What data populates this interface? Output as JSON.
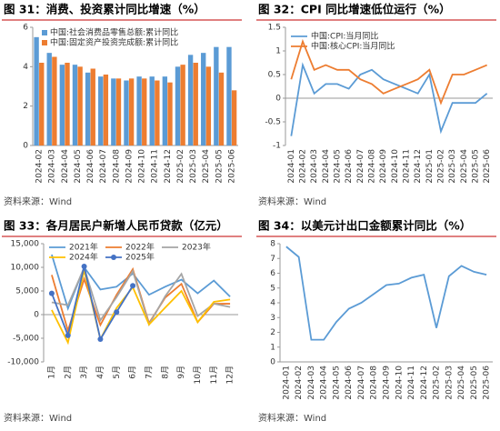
{
  "chart_data": [
    {
      "type": "bar",
      "title": "图 31：消费、投资累计同比增速（%）",
      "source": "资料来源：Wind",
      "categories": [
        "2024-02",
        "2024-03",
        "2024-04",
        "2024-05",
        "2024-06",
        "2024-07",
        "2024-08",
        "2024-09",
        "2024-10",
        "2024-11",
        "2024-12",
        "2025-02",
        "2025-03",
        "2025-04",
        "2025-05",
        "2025-06"
      ],
      "series": [
        {
          "name": "中国:社会消费品零售总额:累计同比",
          "color": "#5b9bd5",
          "values": [
            5.5,
            4.7,
            4.1,
            4.1,
            3.7,
            3.5,
            3.4,
            3.3,
            3.5,
            3.5,
            3.5,
            4.0,
            4.6,
            4.7,
            5.0,
            5.0
          ]
        },
        {
          "name": "中国:固定资产投资完成额:累计同比",
          "color": "#ed7d31",
          "values": [
            4.2,
            4.5,
            4.2,
            4.0,
            3.9,
            3.6,
            3.4,
            3.4,
            3.4,
            3.3,
            3.2,
            4.1,
            4.2,
            4.0,
            3.7,
            2.8
          ]
        }
      ],
      "ylim": [
        0,
        6
      ],
      "yticks": [
        0,
        2,
        4,
        6
      ],
      "grid": false
    },
    {
      "type": "line",
      "title": "图 32：CPI 同比增速低位运行（%）",
      "source": "资料来源：Wind",
      "categories": [
        "2024-01",
        "2024-02",
        "2024-03",
        "2024-04",
        "2024-05",
        "2024-06",
        "2024-07",
        "2024-08",
        "2024-09",
        "2024-10",
        "2024-11",
        "2024-12",
        "2025-01",
        "2025-02",
        "2025-03",
        "2025-04",
        "2025-05",
        "2025-06"
      ],
      "series": [
        {
          "name": "中国:CPI:当月同比",
          "color": "#5b9bd5",
          "values": [
            -0.8,
            0.7,
            0.1,
            0.3,
            0.3,
            0.2,
            0.5,
            0.6,
            0.4,
            0.3,
            0.2,
            0.1,
            0.5,
            -0.7,
            -0.1,
            -0.1,
            -0.1,
            0.1
          ]
        },
        {
          "name": "中国:核心CPI:当月同比",
          "color": "#ed7d31",
          "values": [
            0.4,
            1.2,
            0.6,
            0.7,
            0.6,
            0.6,
            0.4,
            0.3,
            0.1,
            0.2,
            0.3,
            0.4,
            0.6,
            -0.1,
            0.5,
            0.5,
            0.6,
            0.7
          ]
        }
      ],
      "ylim": [
        -1,
        1.5
      ],
      "yticks": [
        -1,
        -0.5,
        0,
        0.5,
        1,
        1.5
      ],
      "grid": false
    },
    {
      "type": "line",
      "title": "图 33：各月居民户新增人民币贷款（亿元）",
      "source": "资料来源：Wind",
      "categories": [
        "1月",
        "2月",
        "3月",
        "4月",
        "5月",
        "6月",
        "7月",
        "8月",
        "9月",
        "10月",
        "11月",
        "12月"
      ],
      "series": [
        {
          "name": "2021年",
          "color": "#5b9bd5",
          "values": [
            12700,
            1300,
            10000,
            5300,
            5900,
            8700,
            4200,
            5900,
            7400,
            4500,
            7200,
            3800
          ]
        },
        {
          "name": "2022年",
          "color": "#ed7d31",
          "values": [
            8400,
            -3400,
            7500,
            -2200,
            4200,
            9600,
            -1800,
            3600,
            6500,
            -1600,
            2300,
            2300
          ]
        },
        {
          "name": "2023年",
          "color": "#a5a5a5",
          "values": [
            2600,
            2000,
            9900,
            -1200,
            3700,
            9200,
            -2100,
            3900,
            8600,
            -300,
            2300,
            1600
          ]
        },
        {
          "name": "2024年",
          "color": "#ffc000",
          "values": [
            980,
            -5900,
            9400,
            -5200,
            1400,
            5800,
            -2100,
            1500,
            5000,
            -1600,
            2700,
            3200
          ]
        },
        {
          "name": "2025年",
          "color": "#4472c4",
          "markers": true,
          "values": [
            4500,
            -4400,
            10200,
            -5200,
            540,
            6100,
            null,
            null,
            null,
            null,
            null,
            null
          ]
        }
      ],
      "ylim": [
        -10000,
        15000
      ],
      "yticks": [
        {
          "value": -10000,
          "label": "-10,000"
        },
        {
          "value": -5000,
          "label": "-5,000"
        },
        0,
        {
          "value": 5000,
          "label": "5,000"
        },
        {
          "value": 10000,
          "label": "10,000"
        },
        {
          "value": 15000,
          "label": "15,000"
        }
      ],
      "grid": false
    },
    {
      "type": "line",
      "title": "图 34：以美元计出口金额累计同比（%）",
      "source": "资料来源：Wind",
      "categories": [
        "2024-01",
        "2024-02",
        "2024-03",
        "2024-04",
        "2024-05",
        "2024-06",
        "2024-07",
        "2024-08",
        "2024-09",
        "2024-10",
        "2024-11",
        "2024-12",
        "2025-02",
        "2025-03",
        "2025-04",
        "2025-05",
        "2025-06"
      ],
      "series": [
        {
          "color": "#5b9bd5",
          "values": [
            7.8,
            7.1,
            1.5,
            1.5,
            2.7,
            3.6,
            4.0,
            4.6,
            5.2,
            5.3,
            5.7,
            5.9,
            2.3,
            5.8,
            6.5,
            6.1,
            5.9
          ]
        }
      ],
      "ylim": [
        0,
        8
      ],
      "yticks": [
        0,
        1,
        2,
        3,
        4,
        5,
        6,
        7,
        8
      ],
      "grid": false
    }
  ]
}
